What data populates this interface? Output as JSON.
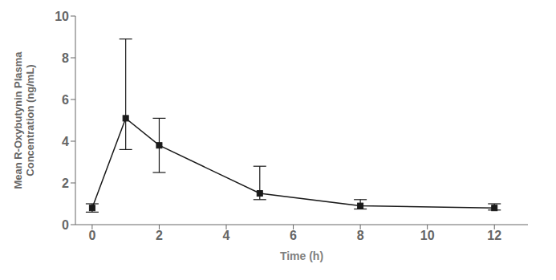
{
  "chart_data": {
    "type": "line",
    "x": [
      0,
      1,
      2,
      5,
      8,
      12
    ],
    "values": [
      0.8,
      5.1,
      3.8,
      1.5,
      0.9,
      0.8
    ],
    "yerr_upper": [
      0.2,
      3.8,
      1.3,
      1.3,
      0.3,
      0.2
    ],
    "yerr_lower": [
      0.2,
      1.5,
      1.3,
      0.3,
      0.15,
      0.1
    ],
    "xlabel": "Time (h)",
    "ylabel": "Mean R-Oxybutynin Plasma\nConcentration (ng/mL)",
    "xlim": [
      -0.5,
      13.0
    ],
    "ylim": [
      0,
      10
    ],
    "xticks": [
      0,
      2,
      4,
      6,
      8,
      10,
      12
    ],
    "yticks": [
      0,
      2,
      4,
      6,
      8,
      10
    ],
    "color": "#1a1a1a",
    "marker": "square",
    "grid": false
  }
}
